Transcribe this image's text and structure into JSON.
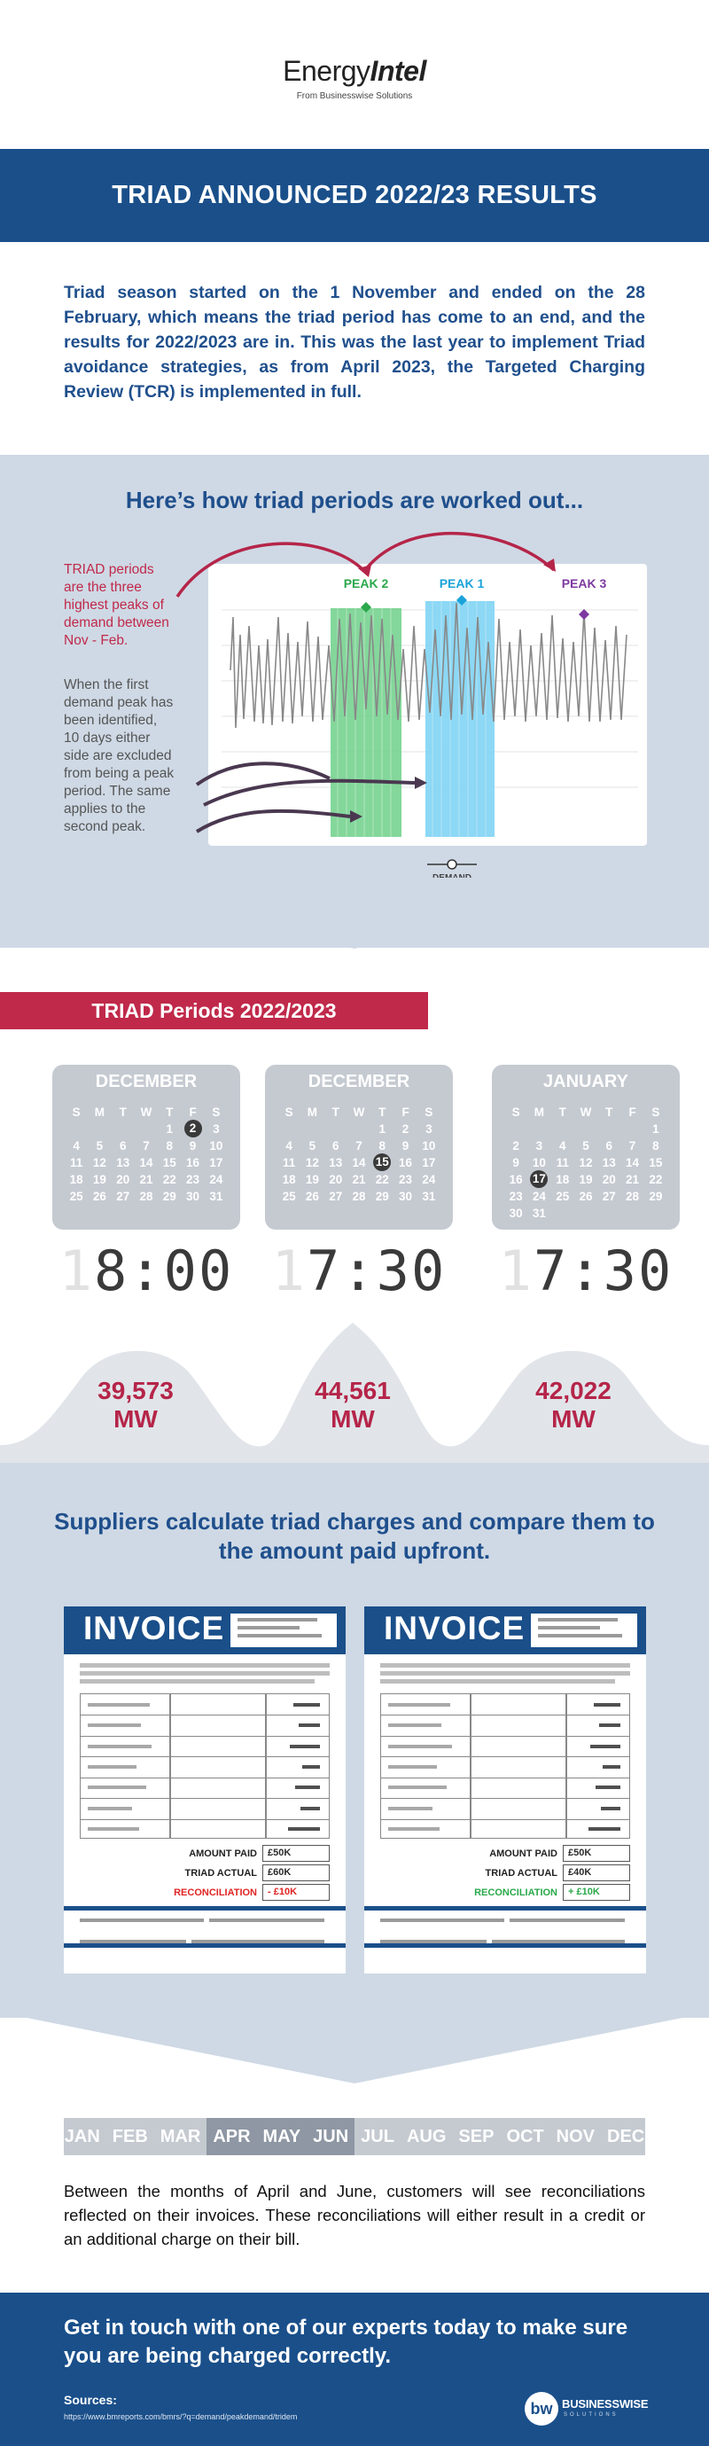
{
  "header": {
    "brand_part1": "Energy",
    "brand_part2": "Intel",
    "sub": "From Businesswise Solutions",
    "title": "TRIAD ANNOUNCED 2022/23 RESULTS"
  },
  "intro": "Triad season started on the 1 November and ended on the 28 February, which means the triad period has come to an end, and the results for 2022/2023 are in. This was the last year to implement Triad avoidance strategies, as from April 2023, the Targeted Charging Review (TCR) is implemented in full.",
  "how": {
    "title": "Here’s how triad periods are worked out...",
    "red_note": "TRIAD periods are the three highest peaks of demand between Nov - Feb.",
    "grey_note": "When the first demand peak has been identified, 10 days either side are excluded from being a peak period. The same applies to the second peak.",
    "demand_label": "DEMAND",
    "peaks": [
      {
        "label": "PEAK 2",
        "color": "#2aa84a"
      },
      {
        "label": "PEAK 1",
        "color": "#1aa3d9"
      },
      {
        "label": "PEAK 3",
        "color": "#7d3aa0"
      }
    ]
  },
  "periods": {
    "tag": "TRIAD Periods 2022/2023",
    "weekdays": [
      "S",
      "M",
      "T",
      "W",
      "T",
      "F",
      "S"
    ],
    "calendars": [
      {
        "month": "DECEMBER",
        "highlight": "2",
        "days": [
          "",
          "",
          "",
          "",
          "1",
          "2",
          "3",
          "4",
          "5",
          "6",
          "7",
          "8",
          "9",
          "10",
          "11",
          "12",
          "13",
          "14",
          "15",
          "16",
          "17",
          "18",
          "19",
          "20",
          "21",
          "22",
          "23",
          "24",
          "25",
          "26",
          "27",
          "28",
          "29",
          "30",
          "31"
        ],
        "time_ghost": "1",
        "time": "8:00",
        "mw_value": "39,573",
        "mw_unit": "MW"
      },
      {
        "month": "DECEMBER",
        "highlight": "15",
        "days": [
          "",
          "",
          "",
          "",
          "1",
          "2",
          "3",
          "4",
          "5",
          "6",
          "7",
          "8",
          "9",
          "10",
          "11",
          "12",
          "13",
          "14",
          "15",
          "16",
          "17",
          "18",
          "19",
          "20",
          "21",
          "22",
          "23",
          "24",
          "25",
          "26",
          "27",
          "28",
          "29",
          "30",
          "31"
        ],
        "time_ghost": "1",
        "time": "7:30",
        "mw_value": "44,561",
        "mw_unit": "MW"
      },
      {
        "month": "JANUARY",
        "highlight": "17",
        "days": [
          "",
          "",
          "",
          "",
          "",
          "",
          "1",
          "2",
          "3",
          "4",
          "5",
          "6",
          "7",
          "8",
          "9",
          "10",
          "11",
          "12",
          "13",
          "14",
          "15",
          "16",
          "17",
          "18",
          "19",
          "20",
          "21",
          "22",
          "23",
          "24",
          "25",
          "26",
          "27",
          "28",
          "29",
          "30",
          "31"
        ],
        "time_ghost": "1",
        "time": "7:30",
        "mw_value": "42,022",
        "mw_unit": "MW"
      }
    ]
  },
  "suppliers": {
    "title": "Suppliers calculate triad charges and compare them to the amount paid upfront.",
    "invoices": [
      {
        "word": "INVOICE",
        "amount_paid_label": "AMOUNT PAID",
        "amount_paid": "£50K",
        "triad_actual_label": "TRIAD ACTUAL",
        "triad_actual": "£60K",
        "reconciliation_label": "RECONCILIATION",
        "reconciliation": "- £10K",
        "reconciliation_color": "#e02424"
      },
      {
        "word": "INVOICE",
        "amount_paid_label": "AMOUNT PAID",
        "amount_paid": "£50K",
        "triad_actual_label": "TRIAD ACTUAL",
        "triad_actual": "£40K",
        "reconciliation_label": "RECONCILIATION",
        "reconciliation": "+ £10K",
        "reconciliation_color": "#2aa84a"
      }
    ]
  },
  "months": {
    "list": [
      "JAN",
      "FEB",
      "MAR",
      "APR",
      "MAY",
      "JUN",
      "JUL",
      "AUG",
      "SEP",
      "OCT",
      "NOV",
      "DEC"
    ],
    "highlighted": [
      "APR",
      "MAY",
      "JUN"
    ]
  },
  "recon_text": "Between the months of April and June, customers will see reconciliations reflected on their invoices. These reconciliations will either result in a credit or an additional charge on their bill.",
  "footer": {
    "cta": "Get in touch with one of our experts today to make sure you are being charged correctly.",
    "sources_heading": "Sources:",
    "source_url": "https://www.bmreports.com/bmrs/?q=demand/peakdemand/tridem",
    "logo_mark": "bw",
    "logo_name": "BUSINESSWISE",
    "logo_sub": "SOLUTIONS"
  }
}
